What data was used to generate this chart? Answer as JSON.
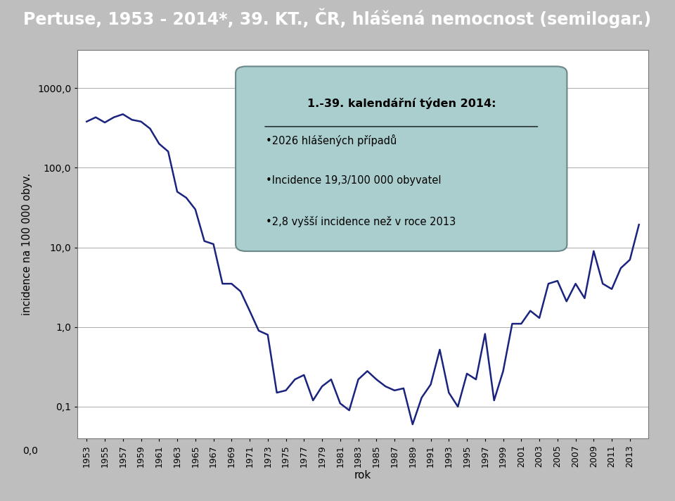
{
  "title": "Pertuse, 1953 - 2014*, 39. KT., ČR, hlášená nemocnost (semilogar.)",
  "ylabel": "incidence na 100 000 obyv.",
  "xlabel": "rok",
  "title_bg": "#1e3f7a",
  "title_color": "#ffffff",
  "line_color": "#1a237e",
  "plot_bg": "#ffffff",
  "fig_bg": "#bebebe",
  "years": [
    1953,
    1954,
    1955,
    1956,
    1957,
    1958,
    1959,
    1960,
    1961,
    1962,
    1963,
    1964,
    1965,
    1966,
    1967,
    1968,
    1969,
    1970,
    1971,
    1972,
    1973,
    1974,
    1975,
    1976,
    1977,
    1978,
    1979,
    1980,
    1981,
    1982,
    1983,
    1984,
    1985,
    1986,
    1987,
    1988,
    1989,
    1990,
    1991,
    1992,
    1993,
    1994,
    1995,
    1996,
    1997,
    1998,
    1999,
    2000,
    2001,
    2002,
    2003,
    2004,
    2005,
    2006,
    2007,
    2008,
    2009,
    2010,
    2011,
    2012,
    2013,
    2014
  ],
  "values": [
    380,
    430,
    370,
    430,
    470,
    400,
    380,
    310,
    200,
    160,
    50,
    42,
    30,
    12,
    11,
    3.5,
    3.5,
    2.8,
    1.6,
    0.9,
    0.8,
    0.15,
    0.16,
    0.22,
    0.25,
    0.12,
    0.18,
    0.22,
    0.11,
    0.09,
    0.22,
    0.28,
    0.22,
    0.18,
    0.16,
    0.17,
    0.06,
    0.13,
    0.19,
    0.52,
    0.15,
    0.1,
    0.26,
    0.22,
    0.82,
    0.12,
    0.28,
    1.1,
    1.1,
    1.6,
    1.3,
    3.5,
    3.8,
    2.1,
    3.5,
    2.3,
    9.0,
    3.5,
    3.0,
    5.5,
    7.0,
    19.3
  ],
  "yticks": [
    0.1,
    1.0,
    10.0,
    100.0,
    1000.0
  ],
  "ytick_labels": [
    "0,1",
    "1,0",
    "10,0",
    "100,0",
    "1000,0"
  ],
  "xtick_years": [
    1953,
    1955,
    1957,
    1959,
    1961,
    1963,
    1965,
    1967,
    1969,
    1971,
    1973,
    1975,
    1977,
    1979,
    1981,
    1983,
    1985,
    1987,
    1989,
    1991,
    1993,
    1995,
    1997,
    1999,
    2001,
    2003,
    2005,
    2007,
    2009,
    2011,
    2013
  ],
  "ymin": 0.04,
  "ymax": 3000,
  "xmin": 1952,
  "xmax": 2015,
  "annot_title": "1.-39. kalendářní týden 2014:",
  "annot_lines": [
    "•2026 hlášených případů",
    "•Incidence 19,3/100 000 obyvatel",
    "•2,8 vyšší incidence než v roce 2013"
  ],
  "annot_bg": "#aacece",
  "zero_label": "0,0",
  "grid_color": "#aaaaaa"
}
